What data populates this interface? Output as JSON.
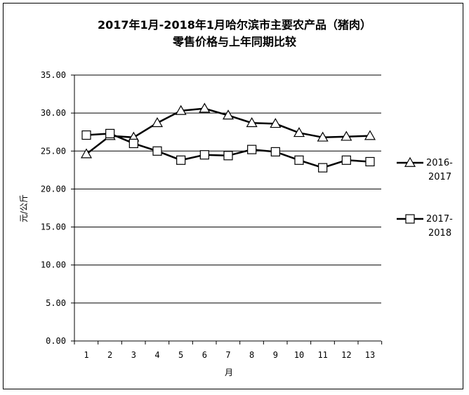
{
  "chart_data": {
    "type": "line",
    "title_line1": "2017年1月-2018年1月哈尔滨市主要农产品（猪肉）",
    "title_line2": "零售价格与上年同期比较",
    "xlabel": "月",
    "ylabel": "元/公斤",
    "ylim": [
      0,
      35
    ],
    "yticks": [
      "0.00",
      "5.00",
      "10.00",
      "15.00",
      "20.00",
      "25.00",
      "30.00",
      "35.00"
    ],
    "x": [
      "1",
      "2",
      "3",
      "4",
      "5",
      "6",
      "7",
      "8",
      "9",
      "10",
      "11",
      "12",
      "13"
    ],
    "series": [
      {
        "name_line1": "2016-",
        "name_line2": "2017",
        "marker": "triangle",
        "values": [
          24.6,
          27.0,
          26.8,
          28.7,
          30.3,
          30.6,
          29.7,
          28.7,
          28.6,
          27.4,
          26.8,
          26.9,
          27.0
        ]
      },
      {
        "name_line1": "2017-",
        "name_line2": "2018",
        "marker": "square",
        "values": [
          27.1,
          27.3,
          26.0,
          25.0,
          23.8,
          24.5,
          24.4,
          25.2,
          24.9,
          23.8,
          22.8,
          23.8,
          23.6
        ]
      }
    ],
    "grid": true,
    "legend_position": "right"
  }
}
